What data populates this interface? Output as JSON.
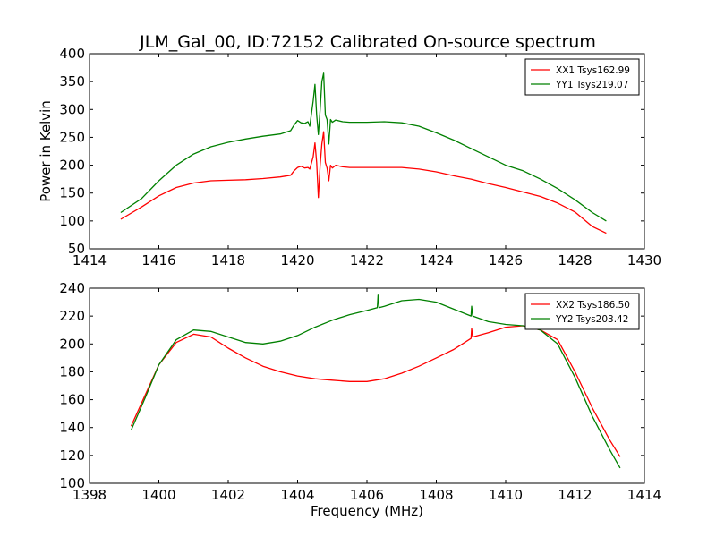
{
  "figure": {
    "title": "JLM_Gal_00, ID:72152 Calibrated On-source spectrum"
  },
  "chart_data": [
    {
      "type": "line",
      "xlabel": "",
      "ylabel": "Power in Kelvin",
      "xlim": [
        1414,
        1430
      ],
      "ylim": [
        50,
        400
      ],
      "xticks": [
        1414,
        1416,
        1418,
        1420,
        1422,
        1424,
        1426,
        1428,
        1430
      ],
      "yticks": [
        50,
        100,
        150,
        200,
        250,
        300,
        350,
        400
      ],
      "legend_position": "top-right",
      "series": [
        {
          "name": "XX1 Tsys162.99",
          "color": "#ff0000",
          "points": [
            [
              1414.9,
              103
            ],
            [
              1415.5,
              125
            ],
            [
              1416,
              145
            ],
            [
              1416.5,
              160
            ],
            [
              1417,
              168
            ],
            [
              1417.5,
              172
            ],
            [
              1418,
              173
            ],
            [
              1418.5,
              174
            ],
            [
              1419,
              176
            ],
            [
              1419.5,
              179
            ],
            [
              1419.8,
              182
            ],
            [
              1419.9,
              190
            ],
            [
              1420,
              196
            ],
            [
              1420.1,
              198
            ],
            [
              1420.2,
              195
            ],
            [
              1420.3,
              196
            ],
            [
              1420.35,
              193
            ],
            [
              1420.45,
              215
            ],
            [
              1420.5,
              240
            ],
            [
              1420.55,
              205
            ],
            [
              1420.6,
              142
            ],
            [
              1420.65,
              200
            ],
            [
              1420.7,
              238
            ],
            [
              1420.75,
              260
            ],
            [
              1420.8,
              205
            ],
            [
              1420.85,
              195
            ],
            [
              1420.9,
              172
            ],
            [
              1420.95,
              200
            ],
            [
              1421,
              195
            ],
            [
              1421.1,
              200
            ],
            [
              1421.3,
              197
            ],
            [
              1421.5,
              196
            ],
            [
              1422,
              196
            ],
            [
              1422.5,
              196
            ],
            [
              1423,
              196
            ],
            [
              1423.5,
              193
            ],
            [
              1424,
              188
            ],
            [
              1424.5,
              181
            ],
            [
              1425,
              175
            ],
            [
              1425.5,
              167
            ],
            [
              1426,
              160
            ],
            [
              1426.5,
              152
            ],
            [
              1427,
              144
            ],
            [
              1427.5,
              132
            ],
            [
              1428,
              116
            ],
            [
              1428.5,
              90
            ],
            [
              1428.9,
              78
            ]
          ]
        },
        {
          "name": "YY1 Tsys219.07",
          "color": "#008000",
          "points": [
            [
              1414.9,
              115
            ],
            [
              1415.5,
              140
            ],
            [
              1416,
              172
            ],
            [
              1416.5,
              200
            ],
            [
              1417,
              220
            ],
            [
              1417.5,
              233
            ],
            [
              1418,
              241
            ],
            [
              1418.5,
              247
            ],
            [
              1419,
              252
            ],
            [
              1419.5,
              256
            ],
            [
              1419.8,
              262
            ],
            [
              1419.9,
              272
            ],
            [
              1420,
              280
            ],
            [
              1420.1,
              276
            ],
            [
              1420.2,
              275
            ],
            [
              1420.3,
              278
            ],
            [
              1420.35,
              270
            ],
            [
              1420.45,
              315
            ],
            [
              1420.5,
              345
            ],
            [
              1420.55,
              290
            ],
            [
              1420.6,
              255
            ],
            [
              1420.65,
              300
            ],
            [
              1420.7,
              350
            ],
            [
              1420.75,
              365
            ],
            [
              1420.8,
              290
            ],
            [
              1420.85,
              282
            ],
            [
              1420.9,
              238
            ],
            [
              1420.95,
              282
            ],
            [
              1421,
              277
            ],
            [
              1421.1,
              281
            ],
            [
              1421.3,
              278
            ],
            [
              1421.5,
              277
            ],
            [
              1422,
              277
            ],
            [
              1422.5,
              278
            ],
            [
              1423,
              276
            ],
            [
              1423.5,
              270
            ],
            [
              1424,
              258
            ],
            [
              1424.5,
              245
            ],
            [
              1425,
              230
            ],
            [
              1425.5,
              215
            ],
            [
              1426,
              200
            ],
            [
              1426.5,
              190
            ],
            [
              1427,
              175
            ],
            [
              1427.5,
              158
            ],
            [
              1428,
              138
            ],
            [
              1428.5,
              115
            ],
            [
              1428.9,
              100
            ]
          ]
        }
      ]
    },
    {
      "type": "line",
      "xlabel": "Frequency (MHz)",
      "ylabel": "",
      "xlim": [
        1398,
        1414
      ],
      "ylim": [
        100,
        240
      ],
      "xticks": [
        1398,
        1400,
        1402,
        1404,
        1406,
        1408,
        1410,
        1412,
        1414
      ],
      "yticks": [
        100,
        120,
        140,
        160,
        180,
        200,
        220,
        240
      ],
      "legend_position": "top-right",
      "series": [
        {
          "name": "XX2 Tsys186.50",
          "color": "#ff0000",
          "points": [
            [
              1399.2,
              141
            ],
            [
              1399.6,
              163
            ],
            [
              1400,
              185
            ],
            [
              1400.5,
              201
            ],
            [
              1401,
              207
            ],
            [
              1401.5,
              205
            ],
            [
              1402,
              197
            ],
            [
              1402.5,
              190
            ],
            [
              1403,
              184
            ],
            [
              1403.5,
              180
            ],
            [
              1404,
              177
            ],
            [
              1404.5,
              175
            ],
            [
              1405,
              174
            ],
            [
              1405.5,
              173
            ],
            [
              1406,
              173
            ],
            [
              1406.5,
              175
            ],
            [
              1407,
              179
            ],
            [
              1407.5,
              184
            ],
            [
              1408,
              190
            ],
            [
              1408.5,
              196
            ],
            [
              1409,
              204
            ],
            [
              1409.02,
              211
            ],
            [
              1409.05,
              205
            ],
            [
              1409.5,
              208
            ],
            [
              1410,
              212
            ],
            [
              1410.5,
              213
            ],
            [
              1411,
              210
            ],
            [
              1411.5,
              203
            ],
            [
              1412,
              180
            ],
            [
              1412.5,
              154
            ],
            [
              1413,
              131
            ],
            [
              1413.3,
              119
            ]
          ]
        },
        {
          "name": "YY2 Tsys203.42",
          "color": "#008000",
          "points": [
            [
              1399.2,
              138
            ],
            [
              1399.6,
              161
            ],
            [
              1400,
              185
            ],
            [
              1400.5,
              203
            ],
            [
              1401,
              210
            ],
            [
              1401.5,
              209
            ],
            [
              1402,
              205
            ],
            [
              1402.5,
              201
            ],
            [
              1403,
              200
            ],
            [
              1403.5,
              202
            ],
            [
              1404,
              206
            ],
            [
              1404.5,
              212
            ],
            [
              1405,
              217
            ],
            [
              1405.5,
              221
            ],
            [
              1406,
              224
            ],
            [
              1406.3,
              226
            ],
            [
              1406.32,
              235
            ],
            [
              1406.35,
              226
            ],
            [
              1406.5,
              227
            ],
            [
              1407,
              231
            ],
            [
              1407.5,
              232
            ],
            [
              1408,
              230
            ],
            [
              1408.5,
              225
            ],
            [
              1409,
              220
            ],
            [
              1409.02,
              227
            ],
            [
              1409.05,
              220
            ],
            [
              1409.5,
              216
            ],
            [
              1410,
              214
            ],
            [
              1410.5,
              213
            ],
            [
              1411,
              210
            ],
            [
              1411.5,
              200
            ],
            [
              1412,
              176
            ],
            [
              1412.5,
              148
            ],
            [
              1413,
              124
            ],
            [
              1413.3,
              111
            ]
          ]
        }
      ]
    }
  ]
}
